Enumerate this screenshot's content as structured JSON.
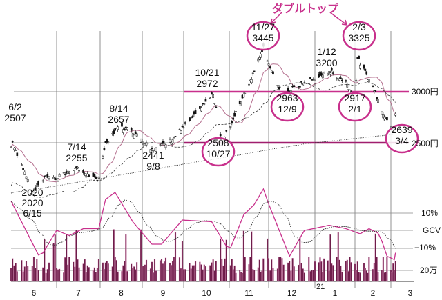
{
  "chart_data": {
    "type": "candlestick",
    "title": "ダブルトップ",
    "currency_unit": "円",
    "price_levels": [
      {
        "value": 3000,
        "label": "3000円"
      },
      {
        "value": 2500,
        "label": "2500円"
      }
    ],
    "oscillator_labels": {
      "upper": "10%",
      "center": "GCV",
      "lower": "−10%"
    },
    "volume_label": "20万",
    "x_ticks": [
      "6",
      "7",
      "8",
      "9",
      "10",
      "11",
      "12",
      "1",
      "2",
      "3"
    ],
    "year_marker": "21",
    "price_anchors": [
      [
        "2020-06-01",
        2460
      ],
      [
        "2020-06-02",
        2507
      ],
      [
        "2020-06-15",
        2020
      ],
      [
        "2020-06-24",
        2180
      ],
      [
        "2020-07-01",
        2150
      ],
      [
        "2020-07-14",
        2255
      ],
      [
        "2020-07-30",
        2130
      ],
      [
        "2020-08-05",
        2500
      ],
      [
        "2020-08-14",
        2657
      ],
      [
        "2020-08-24",
        2620
      ],
      [
        "2020-09-08",
        2441
      ],
      [
        "2020-09-20",
        2500
      ],
      [
        "2020-10-01",
        2650
      ],
      [
        "2020-10-21",
        2972
      ],
      [
        "2020-10-27",
        2508
      ],
      [
        "2020-11-06",
        2800
      ],
      [
        "2020-11-20",
        3200
      ],
      [
        "2020-11-27",
        3445
      ],
      [
        "2020-12-09",
        2963
      ],
      [
        "2020-12-20",
        3050
      ],
      [
        "2021-01-12",
        3200
      ],
      [
        "2021-01-25",
        3100
      ],
      [
        "2021-02-01",
        2917
      ],
      [
        "2021-02-03",
        3325
      ],
      [
        "2021-02-15",
        3050
      ],
      [
        "2021-02-24",
        2750
      ],
      [
        "2021-03-04",
        2639
      ],
      [
        "2021-03-05",
        2780
      ]
    ],
    "annotations": [
      {
        "date": "6/2",
        "price": "2507"
      },
      {
        "date": "6/15",
        "price": "2020"
      },
      {
        "date": "7/14",
        "price": "2255"
      },
      {
        "date": "8/14",
        "price": "2657"
      },
      {
        "date": "9/8",
        "price": "2441"
      },
      {
        "date": "10/21",
        "price": "2972"
      },
      {
        "date": "10/27",
        "price": "2508"
      },
      {
        "date": "11/27",
        "price": "3445"
      },
      {
        "date": "12/9",
        "price": "2963"
      },
      {
        "date": "1/12",
        "price": "3200"
      },
      {
        "date": "2/1",
        "price": "2917"
      },
      {
        "date": "2/3",
        "price": "3325"
      },
      {
        "date": "3/4",
        "price": "2639"
      }
    ],
    "year_prefix": "2020",
    "gcv_anchors": [
      [
        "2020-06-01",
        17
      ],
      [
        "2020-06-20",
        -16
      ],
      [
        "2020-07-01",
        0
      ],
      [
        "2020-07-10",
        -3
      ],
      [
        "2020-07-20",
        1
      ],
      [
        "2020-07-31",
        1
      ],
      [
        "2020-08-05",
        18
      ],
      [
        "2020-08-12",
        22
      ],
      [
        "2020-08-25",
        5
      ],
      [
        "2020-09-08",
        -8
      ],
      [
        "2020-09-15",
        -8
      ],
      [
        "2020-09-30",
        6
      ],
      [
        "2020-10-20",
        5
      ],
      [
        "2020-11-01",
        -12
      ],
      [
        "2020-11-12",
        9
      ],
      [
        "2020-11-20",
        15
      ],
      [
        "2020-11-27",
        24
      ],
      [
        "2020-12-15",
        -15
      ],
      [
        "2020-12-25",
        0
      ],
      [
        "2021-01-12",
        3
      ],
      [
        "2021-01-25",
        1
      ],
      [
        "2021-02-05",
        -2
      ],
      [
        "2021-02-12",
        1
      ],
      [
        "2021-02-20",
        -2
      ],
      [
        "2021-02-26",
        -15
      ],
      [
        "2021-03-04",
        -17
      ],
      [
        "2021-03-05",
        -13
      ]
    ],
    "ylim": [
      2000,
      3500
    ],
    "colors": {
      "accent": "#c8308c",
      "grid": "#888888",
      "ma": "#b5708f",
      "volume": "#6e1d4a"
    }
  }
}
